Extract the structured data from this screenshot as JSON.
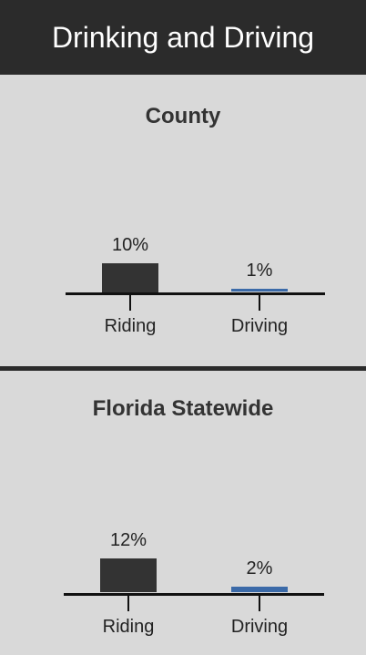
{
  "title": "Drinking and Driving",
  "chart_data": [
    {
      "type": "bar",
      "title": "County",
      "categories": [
        "Riding",
        "Driving"
      ],
      "values": [
        10,
        1
      ],
      "value_labels": [
        "10%",
        "1%"
      ],
      "colors": [
        "#333333",
        "#3b6aa8"
      ]
    },
    {
      "type": "bar",
      "title": "Florida Statewide",
      "categories": [
        "Riding",
        "Driving"
      ],
      "values": [
        12,
        2
      ],
      "value_labels": [
        "12%",
        "2%"
      ],
      "colors": [
        "#333333",
        "#3b6aa8"
      ]
    }
  ]
}
